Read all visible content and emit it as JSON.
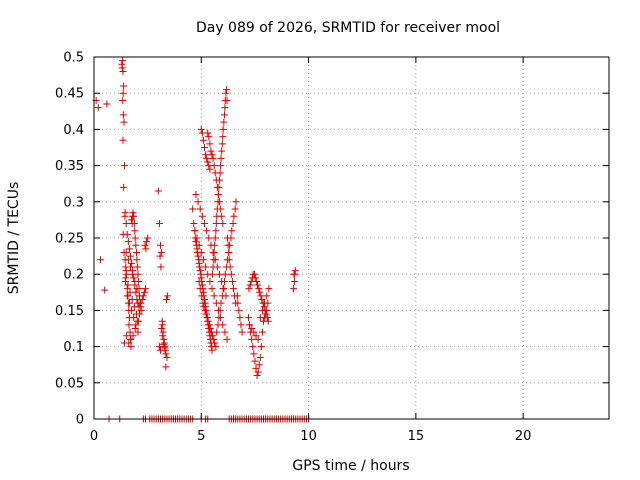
{
  "chart_data": {
    "type": "scatter",
    "title": "Day 089 of 2026, SRMTID for receiver mool",
    "xlabel": "GPS time / hours",
    "ylabel": "SRMTID / TECUs",
    "xlim": [
      0,
      24
    ],
    "ylim": [
      0,
      0.5
    ],
    "xticks": [
      0,
      5,
      10,
      15,
      20
    ],
    "xtick_labels": [
      "0",
      "5",
      "10",
      "15",
      "20"
    ],
    "yticks": [
      0,
      0.05,
      0.1,
      0.15,
      0.2,
      0.25,
      0.3,
      0.35,
      0.4,
      0.45,
      0.5
    ],
    "ytick_labels": [
      "0",
      "0.05",
      "0.1",
      "0.15",
      "0.2",
      "0.25",
      "0.3",
      "0.35",
      "0.4",
      "0.45",
      "0.5"
    ],
    "grid": true,
    "marker": "+",
    "marker_color": "#e00000",
    "series": [
      {
        "name": "SRMTID",
        "x": [
          1.3,
          1.32,
          1.35,
          1.33,
          1.38,
          1.36,
          1.34,
          1.37,
          1.4,
          1.35,
          1.42,
          1.38,
          1.44,
          1.36,
          1.4,
          1.45,
          1.48,
          1.5,
          1.52,
          1.47,
          1.55,
          1.58,
          1.6,
          1.62,
          1.65,
          1.63,
          1.68,
          1.7,
          1.72,
          1.75,
          1.78,
          1.8,
          1.82,
          1.85,
          1.88,
          1.9,
          1.92,
          1.95,
          1.98,
          2.0,
          2.02,
          2.05,
          2.08,
          2.1,
          2.12,
          2.15,
          2.18,
          2.2,
          1.45,
          1.5,
          1.55,
          1.6,
          1.65,
          1.7,
          1.75,
          1.8,
          1.85,
          1.9,
          1.95,
          2.0,
          2.05,
          2.1,
          1.5,
          1.6,
          1.7,
          1.8,
          1.9,
          2.0,
          1.55,
          1.65,
          1.75,
          1.85,
          1.95,
          2.05,
          1.62,
          1.72,
          1.82,
          1.92,
          2.02,
          2.12,
          1.48,
          1.58,
          1.68,
          1.78,
          1.88,
          1.98,
          2.08,
          1.42,
          1.52,
          2.18,
          2.25,
          2.3,
          2.35,
          2.4,
          2.45,
          2.5,
          2.38,
          2.42,
          3.0,
          3.05,
          3.1,
          3.15,
          3.08,
          3.12,
          3.18,
          3.2,
          3.22,
          3.25,
          3.28,
          3.3,
          3.32,
          3.35,
          3.4,
          3.15,
          3.2,
          3.38,
          3.42,
          3.05,
          3.1,
          3.25,
          3.3,
          3.35,
          4.6,
          4.65,
          4.7,
          4.72,
          4.75,
          4.78,
          4.8,
          4.82,
          4.85,
          4.88,
          4.9,
          4.92,
          4.95,
          4.98,
          5.0,
          5.02,
          5.05,
          5.08,
          5.1,
          5.12,
          5.15,
          5.18,
          5.2,
          5.22,
          5.25,
          5.28,
          5.3,
          5.32,
          5.35,
          5.38,
          5.4,
          5.42,
          5.45,
          5.48,
          5.5,
          5.52,
          5.55,
          5.58,
          5.6,
          5.62,
          5.65,
          5.68,
          5.7,
          5.72,
          5.75,
          5.78,
          5.8,
          5.82,
          5.85,
          5.88,
          5.9,
          5.92,
          5.95,
          5.98,
          6.0,
          6.02,
          6.05,
          6.08,
          6.1,
          6.12,
          6.15,
          6.18,
          6.2,
          6.22,
          6.25,
          6.28,
          6.3,
          6.35,
          6.4,
          6.45,
          6.5,
          6.55,
          6.6,
          4.7,
          4.8,
          4.9,
          5.0,
          5.1,
          5.2,
          5.3,
          5.4,
          5.5,
          5.6,
          5.7,
          5.8,
          5.9,
          6.0,
          6.1,
          6.2,
          4.75,
          4.85,
          4.95,
          5.05,
          5.15,
          5.25,
          5.35,
          5.45,
          5.55,
          5.65,
          5.75,
          5.85,
          5.95,
          6.05,
          6.15,
          5.3,
          5.35,
          5.4,
          5.45,
          5.5,
          5.55,
          5.6,
          5.65,
          5.7,
          5.75,
          5.8,
          5.85,
          5.9,
          5.95,
          6.0,
          5.0,
          5.05,
          5.1,
          5.15,
          5.2,
          5.25,
          5.3,
          5.35,
          5.4,
          4.9,
          4.95,
          5.02,
          5.08,
          5.12,
          5.18,
          5.22,
          5.28,
          5.32,
          5.38,
          5.42,
          5.48,
          5.52,
          5.58,
          5.62,
          5.68,
          5.72,
          5.78,
          5.82,
          5.88,
          5.92,
          5.98,
          6.02,
          6.08,
          6.12,
          6.18,
          6.22,
          6.28,
          6.32,
          6.38,
          6.42,
          6.48,
          6.52,
          6.58,
          6.62,
          6.68,
          6.7,
          6.75,
          6.8,
          6.85,
          6.9,
          7.2,
          7.25,
          7.3,
          7.35,
          7.4,
          7.45,
          7.5,
          7.55,
          7.6,
          7.65,
          7.7,
          7.75,
          7.8,
          7.85,
          7.9,
          7.95,
          8.0,
          8.05,
          8.1,
          8.15,
          7.22,
          7.28,
          7.32,
          7.38,
          7.42,
          7.48,
          7.52,
          7.58,
          7.62,
          7.68,
          7.72,
          7.78,
          7.82,
          7.88,
          7.92,
          7.98,
          8.02,
          8.08,
          8.12,
          7.25,
          7.35,
          7.45,
          7.55,
          7.65,
          7.75,
          7.85,
          7.95,
          8.05,
          9.3,
          9.35,
          9.32,
          9.38,
          9.34,
          0.1,
          0.2,
          0.3,
          0.5,
          0.6,
          0.7,
          1.2,
          2.3,
          2.4,
          2.6,
          2.7,
          2.8,
          2.9,
          3.0,
          3.1,
          3.2,
          3.3,
          3.4,
          3.5,
          3.6,
          3.7,
          3.8,
          3.9,
          4.0,
          4.1,
          4.2,
          4.3,
          4.4,
          4.5,
          4.6,
          5.0,
          5.2,
          5.3,
          6.3,
          6.4,
          6.5,
          6.6,
          6.7,
          6.8,
          6.9,
          7.0,
          7.1,
          7.2,
          7.3,
          7.4,
          7.5,
          7.6,
          7.7,
          7.8,
          7.9,
          8.0,
          8.1,
          8.2,
          8.3,
          8.4,
          8.5,
          8.6,
          8.7,
          8.8,
          8.9,
          9.0,
          9.1,
          9.2,
          9.3,
          9.4,
          9.5,
          9.6,
          9.7,
          9.8,
          9.9,
          10.0
        ],
        "y": [
          0.49,
          0.485,
          0.48,
          0.495,
          0.46,
          0.45,
          0.44,
          0.42,
          0.41,
          0.385,
          0.35,
          0.32,
          0.28,
          0.255,
          0.23,
          0.22,
          0.21,
          0.205,
          0.2,
          0.19,
          0.18,
          0.17,
          0.16,
          0.15,
          0.14,
          0.13,
          0.12,
          0.11,
          0.1,
          0.275,
          0.27,
          0.28,
          0.285,
          0.28,
          0.27,
          0.26,
          0.25,
          0.24,
          0.23,
          0.22,
          0.21,
          0.2,
          0.19,
          0.18,
          0.17,
          0.16,
          0.155,
          0.15,
          0.285,
          0.27,
          0.255,
          0.245,
          0.235,
          0.225,
          0.215,
          0.205,
          0.195,
          0.185,
          0.175,
          0.165,
          0.16,
          0.155,
          0.23,
          0.22,
          0.21,
          0.2,
          0.19,
          0.18,
          0.17,
          0.16,
          0.15,
          0.14,
          0.13,
          0.12,
          0.105,
          0.11,
          0.115,
          0.125,
          0.135,
          0.145,
          0.195,
          0.185,
          0.175,
          0.165,
          0.155,
          0.145,
          0.135,
          0.105,
          0.115,
          0.16,
          0.165,
          0.17,
          0.175,
          0.18,
          0.245,
          0.25,
          0.24,
          0.235,
          0.315,
          0.27,
          0.24,
          0.23,
          0.225,
          0.21,
          0.135,
          0.13,
          0.12,
          0.11,
          0.105,
          0.1,
          0.095,
          0.09,
          0.085,
          0.125,
          0.115,
          0.165,
          0.17,
          0.1,
          0.095,
          0.103,
          0.098,
          0.072,
          0.29,
          0.27,
          0.26,
          0.25,
          0.245,
          0.24,
          0.235,
          0.23,
          0.225,
          0.22,
          0.215,
          0.21,
          0.205,
          0.2,
          0.195,
          0.19,
          0.185,
          0.18,
          0.175,
          0.17,
          0.165,
          0.16,
          0.155,
          0.15,
          0.145,
          0.14,
          0.135,
          0.13,
          0.125,
          0.12,
          0.115,
          0.11,
          0.105,
          0.1,
          0.095,
          0.2,
          0.21,
          0.22,
          0.23,
          0.24,
          0.25,
          0.26,
          0.27,
          0.28,
          0.29,
          0.3,
          0.31,
          0.32,
          0.33,
          0.34,
          0.35,
          0.36,
          0.37,
          0.38,
          0.39,
          0.4,
          0.41,
          0.42,
          0.43,
          0.44,
          0.45,
          0.455,
          0.44,
          0.25,
          0.24,
          0.23,
          0.22,
          0.21,
          0.2,
          0.19,
          0.18,
          0.17,
          0.16,
          0.26,
          0.25,
          0.24,
          0.23,
          0.22,
          0.21,
          0.2,
          0.19,
          0.18,
          0.17,
          0.16,
          0.15,
          0.14,
          0.13,
          0.12,
          0.11,
          0.31,
          0.3,
          0.29,
          0.28,
          0.27,
          0.26,
          0.25,
          0.24,
          0.23,
          0.22,
          0.21,
          0.2,
          0.19,
          0.18,
          0.17,
          0.395,
          0.39,
          0.38,
          0.37,
          0.365,
          0.36,
          0.35,
          0.34,
          0.33,
          0.32,
          0.31,
          0.3,
          0.29,
          0.28,
          0.27,
          0.4,
          0.395,
          0.385,
          0.375,
          0.365,
          0.36,
          0.355,
          0.35,
          0.345,
          0.19,
          0.18,
          0.17,
          0.16,
          0.155,
          0.15,
          0.145,
          0.14,
          0.135,
          0.13,
          0.125,
          0.12,
          0.115,
          0.11,
          0.105,
          0.1,
          0.12,
          0.13,
          0.14,
          0.15,
          0.16,
          0.17,
          0.18,
          0.19,
          0.2,
          0.21,
          0.22,
          0.23,
          0.24,
          0.25,
          0.26,
          0.27,
          0.28,
          0.29,
          0.3,
          0.17,
          0.16,
          0.15,
          0.14,
          0.13,
          0.12,
          0.14,
          0.13,
          0.12,
          0.11,
          0.1,
          0.09,
          0.08,
          0.07,
          0.06,
          0.065,
          0.075,
          0.085,
          0.1,
          0.12,
          0.135,
          0.14,
          0.145,
          0.15,
          0.16,
          0.18,
          0.18,
          0.185,
          0.19,
          0.195,
          0.2,
          0.2,
          0.195,
          0.19,
          0.185,
          0.18,
          0.175,
          0.17,
          0.165,
          0.16,
          0.155,
          0.15,
          0.145,
          0.14,
          0.135,
          0.13,
          0.125,
          0.12,
          0.115,
          0.11,
          0.14,
          0.15,
          0.16,
          0.17,
          0.18,
          0.19,
          0.2,
          0.205,
          0.2,
          0.44,
          0.43,
          0.22,
          0.178,
          0.435,
          0,
          0,
          0,
          0,
          0,
          0,
          0,
          0,
          0,
          0,
          0,
          0,
          0,
          0,
          0,
          0,
          0,
          0,
          0,
          0,
          0,
          0,
          0,
          0,
          0,
          0,
          0,
          0,
          0,
          0,
          0,
          0,
          0,
          0,
          0,
          0,
          0,
          0,
          0,
          0,
          0,
          0,
          0,
          0,
          0,
          0,
          0,
          0,
          0,
          0,
          0,
          0,
          0,
          0,
          0,
          0,
          0,
          0,
          0,
          0,
          0,
          0,
          0,
          0,
          0,
          0
        ]
      }
    ]
  }
}
